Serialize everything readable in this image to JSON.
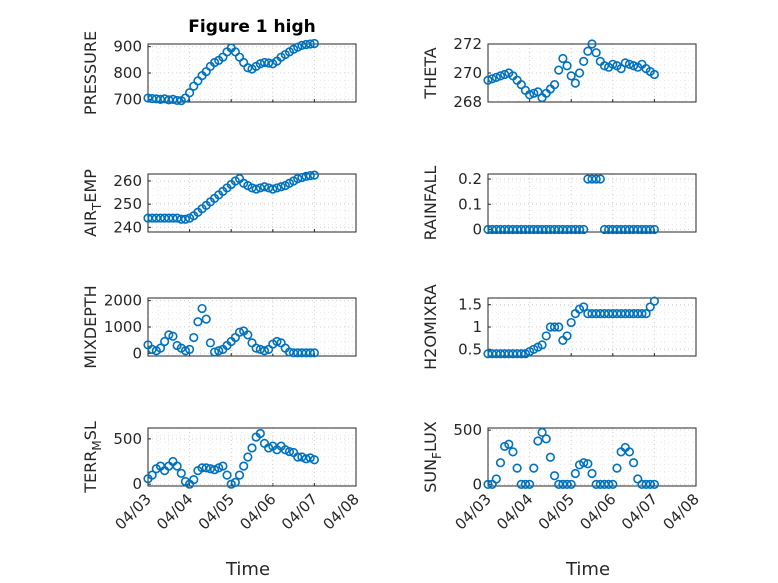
{
  "chart_data": [
    {
      "type": "scatter",
      "title": "Figure 1 high",
      "ylabel": "PRESSURE",
      "ylim": [
        690,
        910
      ],
      "yticks": [
        "700",
        "800",
        "900"
      ],
      "xlim": [
        0,
        5
      ],
      "xticks": [
        "04/03",
        "04/04",
        "04/05",
        "04/06",
        "04/07",
        "04/08"
      ],
      "grid": true,
      "series": [
        {
          "color": "#0072BD",
          "x": [
            0,
            0.1,
            0.2,
            0.3,
            0.4,
            0.5,
            0.6,
            0.7,
            0.8,
            0.9,
            1.0,
            1.1,
            1.2,
            1.3,
            1.4,
            1.5,
            1.6,
            1.7,
            1.8,
            1.9,
            2.0,
            2.1,
            2.2,
            2.3,
            2.4,
            2.5,
            2.6,
            2.7,
            2.8,
            2.9,
            3.0,
            3.1,
            3.2,
            3.3,
            3.4,
            3.5,
            3.6,
            3.7,
            3.8,
            3.9,
            4.0
          ],
          "y": [
            705,
            703,
            702,
            700,
            702,
            698,
            700,
            696,
            695,
            705,
            725,
            750,
            770,
            790,
            805,
            825,
            840,
            848,
            860,
            880,
            895,
            880,
            860,
            840,
            820,
            815,
            825,
            835,
            840,
            838,
            835,
            845,
            860,
            870,
            880,
            890,
            898,
            905,
            908,
            910,
            912
          ]
        }
      ]
    },
    {
      "type": "scatter",
      "ylabel": "THETA",
      "ylim": [
        268,
        272
      ],
      "yticks": [
        "268",
        "270",
        "272"
      ],
      "xlim": [
        0,
        5
      ],
      "grid": true,
      "series": [
        {
          "color": "#0072BD",
          "x": [
            0,
            0.1,
            0.2,
            0.3,
            0.4,
            0.5,
            0.6,
            0.7,
            0.8,
            0.9,
            1.0,
            1.1,
            1.2,
            1.3,
            1.4,
            1.5,
            1.6,
            1.7,
            1.8,
            1.9,
            2.0,
            2.1,
            2.2,
            2.3,
            2.4,
            2.5,
            2.6,
            2.7,
            2.8,
            2.9,
            3.0,
            3.1,
            3.2,
            3.3,
            3.4,
            3.5,
            3.6,
            3.7,
            3.8,
            3.9,
            4.0
          ],
          "y": [
            269.5,
            269.6,
            269.7,
            269.8,
            269.9,
            270.0,
            269.8,
            269.5,
            269.2,
            268.8,
            268.5,
            268.6,
            268.7,
            268.3,
            268.6,
            268.9,
            269.2,
            270.2,
            271.0,
            270.5,
            269.8,
            269.3,
            270.0,
            270.8,
            271.5,
            272.0,
            271.4,
            270.8,
            270.5,
            270.4,
            270.6,
            270.5,
            270.3,
            270.7,
            270.6,
            270.5,
            270.4,
            270.6,
            270.3,
            270.1,
            269.9
          ]
        }
      ]
    },
    {
      "type": "scatter",
      "ylabel": "AIR_TEMP",
      "ylabel_main": "AIR",
      "ylabel_sub": "T",
      "ylabel_rest": "EMP",
      "ylim": [
        238,
        263
      ],
      "yticks": [
        "240",
        "250",
        "260"
      ],
      "xlim": [
        0,
        5
      ],
      "grid": true,
      "series": [
        {
          "color": "#0072BD",
          "x": [
            0,
            0.1,
            0.2,
            0.3,
            0.4,
            0.5,
            0.6,
            0.7,
            0.8,
            0.9,
            1.0,
            1.1,
            1.2,
            1.3,
            1.4,
            1.5,
            1.6,
            1.7,
            1.8,
            1.9,
            2.0,
            2.1,
            2.2,
            2.3,
            2.4,
            2.5,
            2.6,
            2.7,
            2.8,
            2.9,
            3.0,
            3.1,
            3.2,
            3.3,
            3.4,
            3.5,
            3.6,
            3.7,
            3.8,
            3.9,
            4.0
          ],
          "y": [
            244,
            244,
            244,
            244,
            244,
            244,
            244,
            244,
            243.5,
            243.5,
            244,
            245,
            246.5,
            248,
            249.5,
            251,
            252.5,
            254,
            255.5,
            257,
            258.5,
            260,
            261,
            259,
            258,
            257,
            256.5,
            257,
            257.5,
            257,
            256.5,
            257,
            257.5,
            258,
            259,
            260,
            261,
            261.5,
            262,
            262.3,
            262.5
          ]
        }
      ]
    },
    {
      "type": "scatter",
      "ylabel": "RAINFALL",
      "ylim": [
        -0.01,
        0.22
      ],
      "yticks": [
        "0",
        "0.1",
        "0.2"
      ],
      "xlim": [
        0,
        5
      ],
      "grid": true,
      "series": [
        {
          "color": "#0072BD",
          "x": [
            0,
            0.1,
            0.2,
            0.3,
            0.4,
            0.5,
            0.6,
            0.7,
            0.8,
            0.9,
            1.0,
            1.1,
            1.2,
            1.3,
            1.4,
            1.5,
            1.6,
            1.7,
            1.8,
            1.9,
            2.0,
            2.1,
            2.2,
            2.3,
            2.4,
            2.5,
            2.6,
            2.7,
            2.8,
            2.9,
            3.0,
            3.1,
            3.2,
            3.3,
            3.4,
            3.5,
            3.6,
            3.7,
            3.8,
            3.9,
            4.0
          ],
          "y": [
            0,
            0,
            0,
            0,
            0,
            0,
            0,
            0,
            0,
            0,
            0,
            0,
            0,
            0,
            0,
            0,
            0,
            0,
            0,
            0,
            0,
            0,
            0,
            0,
            0.2,
            0.2,
            0.2,
            0.2,
            0,
            0,
            0,
            0,
            0,
            0,
            0,
            0,
            0,
            0,
            0,
            0,
            0
          ]
        }
      ]
    },
    {
      "type": "scatter",
      "ylabel": "MIXDEPTH",
      "ylim": [
        -100,
        2100
      ],
      "yticks": [
        "0",
        "1000",
        "2000"
      ],
      "xlim": [
        0,
        5
      ],
      "grid": true,
      "series": [
        {
          "color": "#0072BD",
          "x": [
            0,
            0.1,
            0.2,
            0.3,
            0.4,
            0.5,
            0.6,
            0.7,
            0.8,
            0.9,
            1.0,
            1.1,
            1.2,
            1.3,
            1.4,
            1.5,
            1.6,
            1.7,
            1.8,
            1.9,
            2.0,
            2.1,
            2.2,
            2.3,
            2.4,
            2.5,
            2.6,
            2.7,
            2.8,
            2.9,
            3.0,
            3.1,
            3.2,
            3.3,
            3.4,
            3.5,
            3.6,
            3.7,
            3.8,
            3.9,
            4.0
          ],
          "y": [
            320,
            150,
            100,
            200,
            450,
            700,
            650,
            300,
            200,
            100,
            150,
            600,
            1200,
            1700,
            1300,
            400,
            50,
            100,
            150,
            300,
            450,
            600,
            800,
            850,
            700,
            400,
            200,
            150,
            100,
            150,
            350,
            450,
            400,
            200,
            50,
            20,
            20,
            20,
            20,
            20,
            20
          ]
        }
      ]
    },
    {
      "type": "scatter",
      "ylabel": "H2OMIXRA",
      "ylim": [
        0.35,
        1.65
      ],
      "yticks": [
        "0.5",
        "1",
        "1.5"
      ],
      "xlim": [
        0,
        5
      ],
      "grid": true,
      "series": [
        {
          "color": "#0072BD",
          "x": [
            0,
            0.1,
            0.2,
            0.3,
            0.4,
            0.5,
            0.6,
            0.7,
            0.8,
            0.9,
            1.0,
            1.1,
            1.2,
            1.3,
            1.4,
            1.5,
            1.6,
            1.7,
            1.8,
            1.9,
            2.0,
            2.1,
            2.2,
            2.3,
            2.4,
            2.5,
            2.6,
            2.7,
            2.8,
            2.9,
            3.0,
            3.1,
            3.2,
            3.3,
            3.4,
            3.5,
            3.6,
            3.7,
            3.8,
            3.9,
            4.0
          ],
          "y": [
            0.4,
            0.4,
            0.4,
            0.4,
            0.4,
            0.4,
            0.4,
            0.4,
            0.4,
            0.4,
            0.45,
            0.5,
            0.55,
            0.6,
            0.8,
            1.0,
            1.0,
            1.0,
            0.7,
            0.8,
            1.1,
            1.3,
            1.4,
            1.45,
            1.3,
            1.3,
            1.3,
            1.3,
            1.3,
            1.3,
            1.3,
            1.3,
            1.3,
            1.3,
            1.3,
            1.3,
            1.3,
            1.3,
            1.3,
            1.45,
            1.58
          ]
        }
      ]
    },
    {
      "type": "scatter",
      "ylabel": "TERR_MSL",
      "ylabel_main": "TERR",
      "ylabel_sub": "M",
      "ylabel_rest": "SL",
      "ylim": [
        -20,
        620
      ],
      "yticks": [
        "0",
        "500"
      ],
      "xlim": [
        0,
        5
      ],
      "xticks": [
        "04/03",
        "04/04",
        "04/05",
        "04/06",
        "04/07",
        "04/08"
      ],
      "xlabel": "Time",
      "grid": true,
      "series": [
        {
          "color": "#0072BD",
          "x": [
            0,
            0.1,
            0.2,
            0.3,
            0.4,
            0.5,
            0.6,
            0.7,
            0.8,
            0.9,
            1.0,
            1.1,
            1.2,
            1.3,
            1.4,
            1.5,
            1.6,
            1.7,
            1.8,
            1.9,
            2.0,
            2.1,
            2.2,
            2.3,
            2.4,
            2.5,
            2.6,
            2.7,
            2.8,
            2.9,
            3.0,
            3.1,
            3.2,
            3.3,
            3.4,
            3.5,
            3.6,
            3.7,
            3.8,
            3.9,
            4.0
          ],
          "y": [
            60,
            100,
            170,
            200,
            150,
            200,
            250,
            200,
            120,
            30,
            0,
            50,
            150,
            180,
            180,
            170,
            160,
            180,
            200,
            100,
            0,
            20,
            100,
            200,
            300,
            400,
            520,
            560,
            450,
            400,
            420,
            380,
            420,
            380,
            360,
            350,
            300,
            300,
            280,
            290,
            270
          ]
        }
      ]
    },
    {
      "type": "scatter",
      "ylabel": "SUN_FLUX",
      "ylabel_main": "SUN",
      "ylabel_sub": "F",
      "ylabel_rest": "LUX",
      "ylim": [
        -15,
        520
      ],
      "yticks": [
        "0",
        "500"
      ],
      "xlim": [
        0,
        5
      ],
      "xticks": [
        "04/03",
        "04/04",
        "04/05",
        "04/06",
        "04/07",
        "04/08"
      ],
      "xlabel": "Time",
      "grid": true,
      "series": [
        {
          "color": "#0072BD",
          "x": [
            0,
            0.1,
            0.2,
            0.3,
            0.4,
            0.5,
            0.6,
            0.7,
            0.8,
            0.9,
            1.0,
            1.1,
            1.2,
            1.3,
            1.4,
            1.5,
            1.6,
            1.7,
            1.8,
            1.9,
            2.0,
            2.1,
            2.2,
            2.3,
            2.4,
            2.5,
            2.6,
            2.7,
            2.8,
            2.9,
            3.0,
            3.1,
            3.2,
            3.3,
            3.4,
            3.5,
            3.6,
            3.7,
            3.8,
            3.9,
            4.0
          ],
          "y": [
            0,
            0,
            50,
            200,
            350,
            370,
            300,
            150,
            0,
            0,
            0,
            150,
            400,
            480,
            420,
            250,
            80,
            0,
            0,
            0,
            0,
            100,
            180,
            200,
            190,
            100,
            0,
            0,
            0,
            0,
            0,
            150,
            300,
            340,
            300,
            200,
            50,
            0,
            0,
            0,
            0
          ]
        }
      ]
    }
  ]
}
